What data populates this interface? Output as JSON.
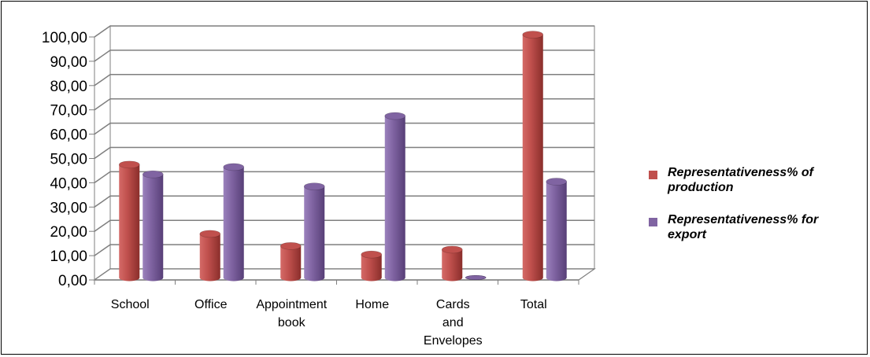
{
  "chart_data": {
    "type": "bar",
    "categories": [
      "School",
      "Office",
      "Appointment book",
      "Home",
      "Cards and Envelopes",
      "Total"
    ],
    "category_lines": [
      [
        "School"
      ],
      [
        "Office"
      ],
      [
        "Appointment",
        "book"
      ],
      [
        "Home"
      ],
      [
        "Cards",
        "and",
        "Envelopes"
      ],
      [
        "Total"
      ]
    ],
    "series": [
      {
        "name": "Representativeness% of production",
        "legend_lines": [
          "Representativeness% of",
          "production"
        ],
        "color": "#c0504d",
        "values": [
          46.5,
          18.0,
          13.0,
          9.5,
          11.5,
          100.0
        ]
      },
      {
        "name": "Representativeness% for export",
        "legend_lines": [
          "Representativeness% for",
          "export"
        ],
        "color": "#8064a2",
        "values": [
          42.5,
          45.5,
          37.5,
          66.5,
          0.0,
          39.5
        ]
      }
    ],
    "yticks": [
      "0,00",
      "10,00",
      "20,00",
      "30,00",
      "40,00",
      "50,00",
      "60,00",
      "70,00",
      "80,00",
      "90,00",
      "100,00"
    ],
    "ylim": [
      0,
      100
    ],
    "grid": true,
    "legend_position": "right",
    "style": "3d-cylinder"
  }
}
